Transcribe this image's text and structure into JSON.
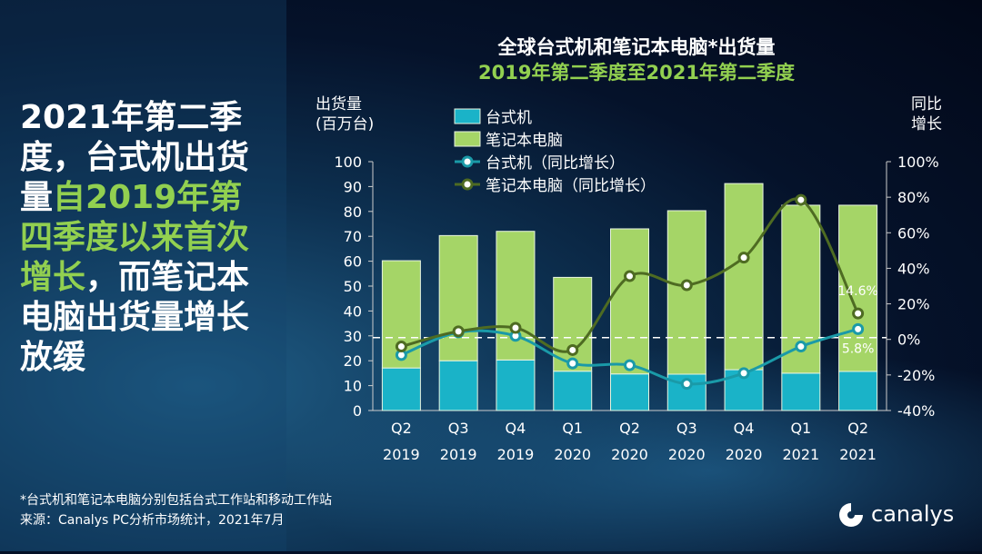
{
  "headline": {
    "part1": "2021年第二季度，台式机出货量",
    "part2": "自2019年第四季度以来首次增长",
    "part3": "，而笔记本电脑出货量增长放缓"
  },
  "chart_data": {
    "type": "bar",
    "title": "全球台式机和笔记本电脑*出货量",
    "subtitle": "2019年第二季度至2021年第二季度",
    "ylabel": "出货量（百万台）",
    "ylabel_lines": [
      "出货量",
      "(百万台)"
    ],
    "y2label_lines": [
      "同比",
      "增长"
    ],
    "ylim": [
      0,
      100
    ],
    "yticks": [
      "0",
      "10",
      "20",
      "30",
      "40",
      "50",
      "60",
      "70",
      "80",
      "90",
      "100"
    ],
    "y2lim": [
      -40,
      100
    ],
    "y2ticks": [
      "-40%",
      "-20%",
      "0%",
      "20%",
      "40%",
      "60%",
      "80%",
      "100%"
    ],
    "categories": [
      [
        "Q2",
        "2019"
      ],
      [
        "Q3",
        "2019"
      ],
      [
        "Q4",
        "2019"
      ],
      [
        "Q1",
        "2020"
      ],
      [
        "Q2",
        "2020"
      ],
      [
        "Q3",
        "2020"
      ],
      [
        "Q4",
        "2020"
      ],
      [
        "Q1",
        "2021"
      ],
      [
        "Q2",
        "2021"
      ]
    ],
    "series": [
      {
        "name": "台式机",
        "type": "bar",
        "color": "#1ab3c8",
        "values": [
          17.1,
          20.0,
          20.3,
          15.8,
          14.7,
          14.6,
          16.4,
          15.0,
          15.7
        ]
      },
      {
        "name": "笔记本电脑",
        "type": "bar",
        "color": "#a5d567",
        "values": [
          43.1,
          50.3,
          51.7,
          37.7,
          58.3,
          65.7,
          74.8,
          67.5,
          66.8
        ]
      },
      {
        "name": "台式机（同比增长）",
        "type": "line",
        "color": "#1a9aa8",
        "values": [
          -8.8,
          4.0,
          2.0,
          -13.5,
          -14.5,
          -25.0,
          -19.0,
          -4.0,
          5.8
        ]
      },
      {
        "name": "笔记本电脑（同比增长）",
        "type": "line",
        "color": "#4e6b22",
        "values": [
          -4.0,
          4.5,
          6.5,
          -6.0,
          35.6,
          30.5,
          46.0,
          78.5,
          14.6
        ]
      }
    ],
    "annotations": [
      "14.6%",
      "5.8%"
    ],
    "legend": "top-left"
  },
  "footer": {
    "note": "*台式机和笔记本电脑分别包括台式工作站和移动工作站",
    "source": "来源：Canalys PC分析市场统计，2021年7月"
  },
  "brand": "canalys"
}
